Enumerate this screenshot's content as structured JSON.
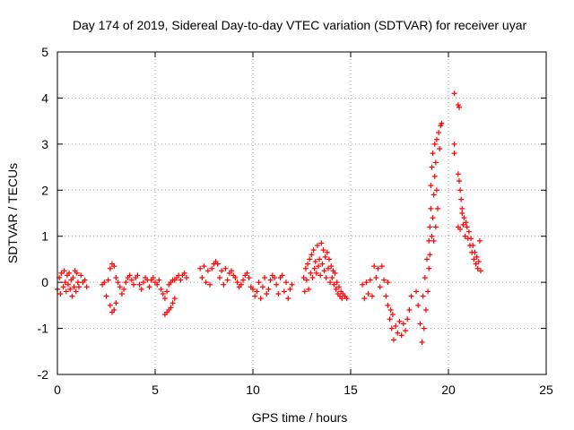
{
  "chart_data": {
    "type": "scatter",
    "title": "Day 174 of 2019, Sidereal Day-to-day VTEC variation (SDTVAR) for receiver uyar",
    "xlabel": "GPS time / hours",
    "ylabel": "SDTVAR / TECUs",
    "xlim": [
      0,
      25
    ],
    "ylim": [
      -2,
      5
    ],
    "xticks": [
      "0",
      "5",
      "10",
      "15",
      "20",
      "25"
    ],
    "yticks": [
      "-2",
      "-1",
      "0",
      "1",
      "2",
      "3",
      "4",
      "5"
    ],
    "grid": true,
    "marker": "+",
    "colors": {
      "series": "#ff0000",
      "grid": "#a0a0a0",
      "frame": "#000000"
    },
    "series": [
      {
        "name": "SDTVAR",
        "points": [
          [
            0.0,
            -0.15
          ],
          [
            0.1,
            0.1
          ],
          [
            0.15,
            -0.25
          ],
          [
            0.2,
            0.2
          ],
          [
            0.3,
            -0.1
          ],
          [
            0.35,
            0.25
          ],
          [
            0.4,
            0.0
          ],
          [
            0.45,
            -0.2
          ],
          [
            0.5,
            0.15
          ],
          [
            0.55,
            -0.05
          ],
          [
            0.6,
            0.2
          ],
          [
            0.65,
            -0.15
          ],
          [
            0.7,
            0.05
          ],
          [
            0.75,
            -0.3
          ],
          [
            0.8,
            0.1
          ],
          [
            0.85,
            -0.1
          ],
          [
            0.9,
            0.25
          ],
          [
            0.95,
            -0.2
          ],
          [
            1.0,
            0.2
          ],
          [
            1.05,
            0.0
          ],
          [
            1.1,
            -0.1
          ],
          [
            1.2,
            0.15
          ],
          [
            1.3,
            0.0
          ],
          [
            1.4,
            0.05
          ],
          [
            1.5,
            -0.1
          ],
          [
            2.3,
            -0.05
          ],
          [
            2.4,
            0.0
          ],
          [
            2.5,
            -0.3
          ],
          [
            2.6,
            0.05
          ],
          [
            2.7,
            -0.5
          ],
          [
            2.8,
            -0.65
          ],
          [
            2.9,
            -0.6
          ],
          [
            3.0,
            -0.45
          ],
          [
            2.7,
            0.3
          ],
          [
            2.8,
            0.4
          ],
          [
            2.9,
            0.35
          ],
          [
            3.0,
            0.1
          ],
          [
            3.1,
            0.0
          ],
          [
            3.2,
            -0.1
          ],
          [
            3.3,
            -0.25
          ],
          [
            3.4,
            -0.15
          ],
          [
            3.5,
            0.0
          ],
          [
            3.6,
            0.1
          ],
          [
            3.7,
            0.15
          ],
          [
            3.8,
            0.05
          ],
          [
            3.9,
            -0.05
          ],
          [
            4.0,
            0.1
          ],
          [
            4.1,
            0.15
          ],
          [
            4.2,
            -0.05
          ],
          [
            4.3,
            -0.15
          ],
          [
            4.4,
            0.0
          ],
          [
            4.5,
            0.1
          ],
          [
            4.6,
            0.05
          ],
          [
            4.7,
            -0.1
          ],
          [
            4.8,
            0.05
          ],
          [
            4.9,
            0.1
          ],
          [
            5.0,
            0.0
          ],
          [
            5.1,
            -0.05
          ],
          [
            5.2,
            0.05
          ],
          [
            5.3,
            -0.15
          ],
          [
            5.4,
            -0.25
          ],
          [
            5.5,
            -0.35
          ],
          [
            5.6,
            -0.2
          ],
          [
            5.7,
            -0.05
          ],
          [
            5.8,
            0.0
          ],
          [
            5.9,
            0.05
          ],
          [
            5.5,
            -0.7
          ],
          [
            5.6,
            -0.65
          ],
          [
            5.7,
            -0.6
          ],
          [
            5.8,
            -0.55
          ],
          [
            5.9,
            -0.45
          ],
          [
            6.0,
            -0.35
          ],
          [
            6.0,
            0.05
          ],
          [
            6.1,
            0.1
          ],
          [
            6.2,
            0.15
          ],
          [
            6.3,
            0.05
          ],
          [
            6.4,
            0.15
          ],
          [
            6.5,
            0.2
          ],
          [
            6.6,
            0.1
          ],
          [
            7.3,
            0.3
          ],
          [
            7.4,
            0.1
          ],
          [
            7.5,
            0.35
          ],
          [
            7.6,
            0.0
          ],
          [
            7.7,
            0.25
          ],
          [
            7.8,
            -0.05
          ],
          [
            7.9,
            0.3
          ],
          [
            8.0,
            0.4
          ],
          [
            8.1,
            0.45
          ],
          [
            8.2,
            0.4
          ],
          [
            8.3,
            0.1
          ],
          [
            8.4,
            0.25
          ],
          [
            8.5,
            -0.05
          ],
          [
            8.6,
            0.3
          ],
          [
            8.7,
            0.05
          ],
          [
            8.8,
            0.2
          ],
          [
            8.9,
            0.25
          ],
          [
            9.0,
            0.15
          ],
          [
            9.1,
            0.1
          ],
          [
            9.2,
            0.0
          ],
          [
            9.3,
            -0.1
          ],
          [
            9.4,
            -0.05
          ],
          [
            9.5,
            0.05
          ],
          [
            9.6,
            0.15
          ],
          [
            9.7,
            0.2
          ],
          [
            9.8,
            0.1
          ],
          [
            9.9,
            -0.1
          ],
          [
            10.0,
            -0.15
          ],
          [
            10.1,
            -0.3
          ],
          [
            10.2,
            -0.2
          ],
          [
            10.3,
            0.0
          ],
          [
            10.4,
            -0.35
          ],
          [
            10.5,
            -0.1
          ],
          [
            10.6,
            0.1
          ],
          [
            10.7,
            -0.25
          ],
          [
            10.8,
            -0.15
          ],
          [
            10.9,
            0.05
          ],
          [
            11.0,
            0.15
          ],
          [
            11.1,
            0.1
          ],
          [
            11.2,
            -0.05
          ],
          [
            11.3,
            -0.25
          ],
          [
            11.4,
            0.1
          ],
          [
            11.5,
            0.15
          ],
          [
            11.6,
            -0.2
          ],
          [
            11.7,
            0.0
          ],
          [
            11.8,
            -0.35
          ],
          [
            11.9,
            -0.15
          ],
          [
            12.0,
            -0.05
          ],
          [
            12.6,
            0.1
          ],
          [
            12.65,
            -0.2
          ],
          [
            12.7,
            0.3
          ],
          [
            12.75,
            0.05
          ],
          [
            12.8,
            0.4
          ],
          [
            12.85,
            -0.15
          ],
          [
            12.9,
            0.5
          ],
          [
            12.95,
            0.2
          ],
          [
            13.0,
            0.6
          ],
          [
            13.05,
            0.1
          ],
          [
            13.1,
            0.7
          ],
          [
            13.15,
            0.3
          ],
          [
            13.2,
            0.45
          ],
          [
            13.25,
            0.2
          ],
          [
            13.3,
            0.8
          ],
          [
            13.35,
            0.35
          ],
          [
            13.4,
            0.5
          ],
          [
            13.45,
            0.15
          ],
          [
            13.5,
            0.85
          ],
          [
            13.55,
            0.4
          ],
          [
            13.6,
            0.7
          ],
          [
            13.65,
            0.25
          ],
          [
            13.7,
            0.55
          ],
          [
            13.75,
            0.1
          ],
          [
            13.8,
            0.65
          ],
          [
            13.85,
            0.3
          ],
          [
            13.9,
            0.5
          ],
          [
            13.95,
            0.0
          ],
          [
            14.0,
            0.35
          ],
          [
            14.05,
            0.1
          ],
          [
            14.1,
            0.25
          ],
          [
            14.15,
            -0.05
          ],
          [
            14.2,
            0.2
          ],
          [
            14.25,
            -0.15
          ],
          [
            14.3,
            0.0
          ],
          [
            14.35,
            -0.25
          ],
          [
            14.4,
            -0.1
          ],
          [
            14.45,
            -0.3
          ],
          [
            14.5,
            -0.2
          ],
          [
            14.55,
            -0.35
          ],
          [
            14.6,
            -0.25
          ],
          [
            14.7,
            -0.3
          ],
          [
            14.8,
            -0.35
          ],
          [
            15.6,
            -0.05
          ],
          [
            15.7,
            -0.35
          ],
          [
            15.8,
            0.0
          ],
          [
            15.9,
            -0.25
          ],
          [
            16.0,
            0.05
          ],
          [
            16.1,
            -0.3
          ],
          [
            16.2,
            0.35
          ],
          [
            16.3,
            0.1
          ],
          [
            16.4,
            0.3
          ],
          [
            16.5,
            -0.1
          ],
          [
            16.6,
            0.35
          ],
          [
            16.7,
            0.05
          ],
          [
            16.8,
            -0.3
          ],
          [
            16.9,
            0.0
          ],
          [
            16.9,
            -0.5
          ],
          [
            17.0,
            -0.8
          ],
          [
            17.05,
            -0.6
          ],
          [
            17.1,
            -1.0
          ],
          [
            17.15,
            -0.7
          ],
          [
            17.2,
            -1.25
          ],
          [
            17.3,
            -0.95
          ],
          [
            17.4,
            -1.1
          ],
          [
            17.5,
            -0.85
          ],
          [
            17.6,
            -1.15
          ],
          [
            17.7,
            -0.9
          ],
          [
            17.8,
            -1.05
          ],
          [
            17.9,
            -0.8
          ],
          [
            18.0,
            -0.6
          ],
          [
            18.1,
            -0.3
          ],
          [
            18.35,
            -0.2
          ],
          [
            18.45,
            -0.5
          ],
          [
            18.55,
            -0.9
          ],
          [
            18.65,
            -1.3
          ],
          [
            18.7,
            -0.3
          ],
          [
            18.75,
            -1.0
          ],
          [
            18.8,
            0.1
          ],
          [
            18.85,
            -0.6
          ],
          [
            18.9,
            0.5
          ],
          [
            18.95,
            -0.2
          ],
          [
            19.0,
            0.9
          ],
          [
            19.0,
            0.3
          ],
          [
            19.05,
            1.2
          ],
          [
            19.05,
            0.6
          ],
          [
            19.1,
            1.6
          ],
          [
            19.1,
            2.1
          ],
          [
            19.15,
            1.0
          ],
          [
            19.15,
            2.5
          ],
          [
            19.2,
            1.4
          ],
          [
            19.2,
            2.8
          ],
          [
            19.25,
            0.9
          ],
          [
            19.25,
            1.9
          ],
          [
            19.3,
            2.3
          ],
          [
            19.3,
            3.0
          ],
          [
            19.35,
            1.2
          ],
          [
            19.35,
            2.6
          ],
          [
            19.4,
            2.0
          ],
          [
            19.4,
            3.1
          ],
          [
            19.45,
            1.6
          ],
          [
            19.5,
            3.25
          ],
          [
            19.55,
            2.9
          ],
          [
            19.6,
            3.4
          ],
          [
            19.65,
            3.45
          ],
          [
            20.3,
            4.1
          ],
          [
            20.5,
            3.85
          ],
          [
            20.55,
            3.8
          ],
          [
            20.3,
            3.0
          ],
          [
            20.3,
            2.8
          ],
          [
            20.5,
            2.35
          ],
          [
            20.55,
            2.2
          ],
          [
            20.6,
            2.0
          ],
          [
            20.65,
            1.8
          ],
          [
            20.7,
            1.6
          ],
          [
            20.5,
            1.2
          ],
          [
            20.6,
            1.15
          ],
          [
            20.7,
            1.5
          ],
          [
            20.75,
            1.25
          ],
          [
            20.8,
            1.4
          ],
          [
            20.85,
            1.0
          ],
          [
            20.9,
            1.3
          ],
          [
            20.95,
            1.2
          ],
          [
            21.0,
            0.95
          ],
          [
            21.05,
            1.1
          ],
          [
            21.1,
            0.8
          ],
          [
            21.15,
            0.95
          ],
          [
            21.2,
            0.65
          ],
          [
            21.25,
            0.8
          ],
          [
            21.3,
            0.5
          ],
          [
            21.35,
            0.65
          ],
          [
            21.4,
            0.4
          ],
          [
            21.45,
            0.55
          ],
          [
            21.5,
            0.3
          ],
          [
            21.55,
            0.45
          ],
          [
            21.6,
            0.9
          ],
          [
            21.65,
            0.25
          ]
        ]
      }
    ]
  }
}
